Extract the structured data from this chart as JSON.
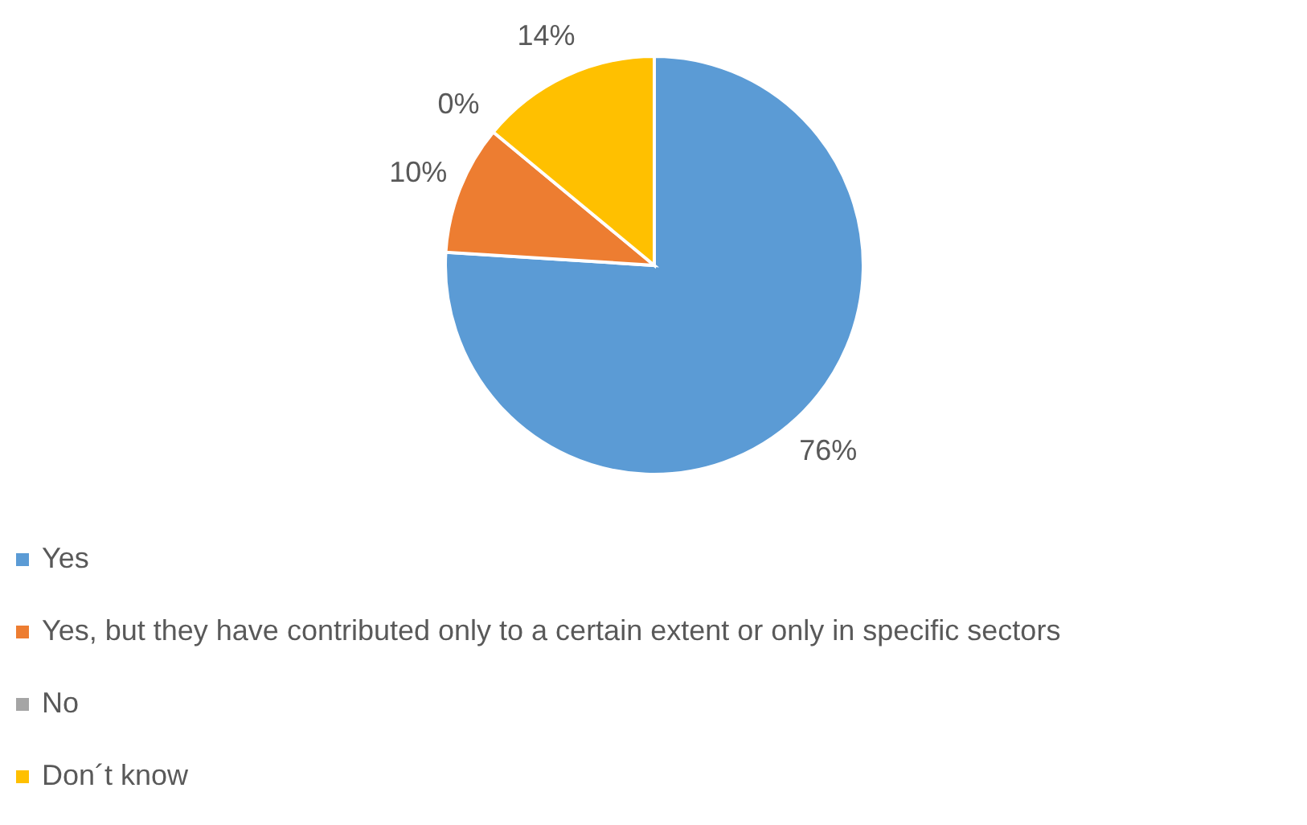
{
  "chart_data": {
    "type": "pie",
    "categories": [
      "Yes",
      "Yes, but they have contributed only to a certain extent or only in specific sectors",
      "No",
      "Don´t know"
    ],
    "values": [
      76,
      10,
      0,
      14
    ],
    "colors": [
      "#5b9bd5",
      "#ed7d31",
      "#a5a5a5",
      "#ffc000"
    ],
    "value_labels": [
      "76%",
      "10%",
      "0%",
      "14%"
    ],
    "legend": "bottom"
  }
}
